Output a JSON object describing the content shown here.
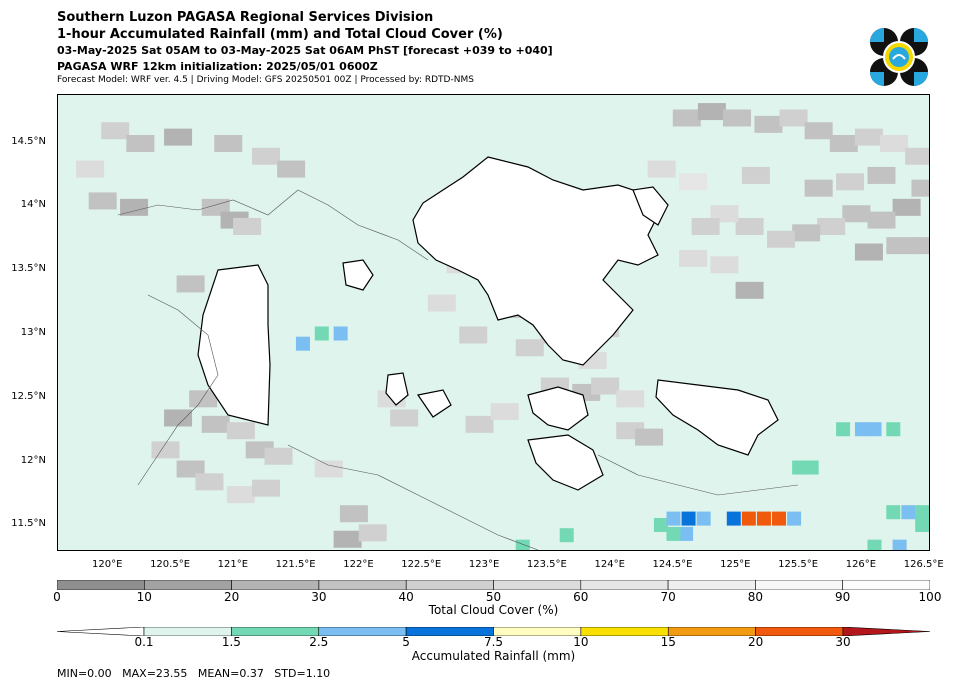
{
  "header": {
    "line1": "Southern Luzon PAGASA Regional Services Division",
    "line2": "1-hour Accumulated Rainfall (mm) and Total Cloud Cover (%)",
    "line3": "03-May-2025 Sat 05AM to 03-May-2025 Sat 06AM PhST [forecast +039 to +040]",
    "line4": "PAGASA WRF 12km initialization: 2025/05/01 0600Z",
    "line5": "Forecast Model: WRF ver. 4.5 | Driving Model: GFS 20250501 00Z | Processed by: RDTD-NMS"
  },
  "logo": {
    "icon": "pagasa-seal-icon",
    "colors": [
      "#111111",
      "#29a8e0",
      "#f5d800"
    ]
  },
  "chart_data": {
    "type": "heatmap",
    "map": {
      "lon_range": [
        119.6,
        126.55
      ],
      "lat_range": [
        11.3,
        14.88
      ],
      "x_ticks": [
        "120°E",
        "120.5°E",
        "121°E",
        "121.5°E",
        "122°E",
        "122.5°E",
        "123°E",
        "123.5°E",
        "124°E",
        "124.5°E",
        "125°E",
        "125.5°E",
        "126°E",
        "126.5°E"
      ],
      "x_tick_values": [
        120,
        120.5,
        121,
        121.5,
        122,
        122.5,
        123,
        123.5,
        124,
        124.5,
        125,
        125.5,
        126,
        126.5
      ],
      "y_ticks": [
        "14.5°N",
        "14°N",
        "13.5°N",
        "13°N",
        "12.5°N",
        "12°N",
        "11.5°N"
      ],
      "y_tick_values": [
        14.5,
        14,
        13.5,
        13,
        12.5,
        12,
        11.5
      ],
      "background_rainfall_color": "#dff4ec"
    },
    "cloud_cover_scale": {
      "label": "Total Cloud Cover (%)",
      "ticks": [
        "0",
        "10",
        "20",
        "30",
        "40",
        "50",
        "60",
        "70",
        "80",
        "90",
        "100"
      ],
      "colors": [
        "#8f8f8f",
        "#a2a2a2",
        "#b3b3b3",
        "#c2c2c2",
        "#d0d0d0",
        "#dcdcdc",
        "#e6e6e6",
        "#efefef",
        "#f7f7f7",
        "#fcfcfc"
      ]
    },
    "rainfall_scale": {
      "label": "Accumulated Rainfall (mm)",
      "ticks": [
        "0.1",
        "1.5",
        "2.5",
        "5",
        "7.5",
        "10",
        "15",
        "20",
        "30"
      ],
      "colors": [
        "#dff4ec",
        "#72d9b4",
        "#7abef2",
        "#0873da",
        "#fffdc0",
        "#f9e000",
        "#f29a12",
        "#f15a0c",
        "#b4171b"
      ]
    },
    "cloud_cells": [
      {
        "lon": 120.0,
        "lat": 14.6,
        "cc": 40
      },
      {
        "lon": 120.2,
        "lat": 14.5,
        "cc": 30
      },
      {
        "lon": 120.5,
        "lat": 14.55,
        "cc": 20
      },
      {
        "lon": 120.9,
        "lat": 14.5,
        "cc": 30
      },
      {
        "lon": 121.2,
        "lat": 14.4,
        "cc": 40
      },
      {
        "lon": 121.4,
        "lat": 14.3,
        "cc": 30
      },
      {
        "lon": 119.8,
        "lat": 14.3,
        "cc": 50
      },
      {
        "lon": 120.15,
        "lat": 14.0,
        "cc": 20
      },
      {
        "lon": 119.9,
        "lat": 14.05,
        "cc": 30
      },
      {
        "lon": 120.8,
        "lat": 14.0,
        "cc": 30
      },
      {
        "lon": 120.95,
        "lat": 13.9,
        "cc": 20
      },
      {
        "lon": 121.05,
        "lat": 13.85,
        "cc": 40
      },
      {
        "lon": 120.6,
        "lat": 13.4,
        "cc": 30
      },
      {
        "lon": 120.95,
        "lat": 13.4,
        "cc": 20
      },
      {
        "lon": 120.85,
        "lat": 13.2,
        "cc": 30
      },
      {
        "lon": 120.8,
        "lat": 12.9,
        "cc": 30
      },
      {
        "lon": 120.9,
        "lat": 12.75,
        "cc": 40
      },
      {
        "lon": 121.0,
        "lat": 12.6,
        "cc": 30
      },
      {
        "lon": 120.7,
        "lat": 12.5,
        "cc": 30
      },
      {
        "lon": 120.5,
        "lat": 12.35,
        "cc": 20
      },
      {
        "lon": 120.8,
        "lat": 12.3,
        "cc": 30
      },
      {
        "lon": 121.0,
        "lat": 12.25,
        "cc": 40
      },
      {
        "lon": 121.15,
        "lat": 12.1,
        "cc": 30
      },
      {
        "lon": 121.3,
        "lat": 12.05,
        "cc": 40
      },
      {
        "lon": 120.4,
        "lat": 12.1,
        "cc": 40
      },
      {
        "lon": 120.6,
        "lat": 11.95,
        "cc": 30
      },
      {
        "lon": 120.75,
        "lat": 11.85,
        "cc": 40
      },
      {
        "lon": 121.0,
        "lat": 11.75,
        "cc": 50
      },
      {
        "lon": 121.2,
        "lat": 11.8,
        "cc": 40
      },
      {
        "lon": 121.9,
        "lat": 11.6,
        "cc": 30
      },
      {
        "lon": 121.85,
        "lat": 11.4,
        "cc": 20
      },
      {
        "lon": 122.05,
        "lat": 11.45,
        "cc": 40
      },
      {
        "lon": 121.7,
        "lat": 11.95,
        "cc": 50
      },
      {
        "lon": 122.2,
        "lat": 12.5,
        "cc": 50
      },
      {
        "lon": 122.3,
        "lat": 12.35,
        "cc": 40
      },
      {
        "lon": 122.9,
        "lat": 12.3,
        "cc": 40
      },
      {
        "lon": 123.1,
        "lat": 12.4,
        "cc": 50
      },
      {
        "lon": 123.5,
        "lat": 12.6,
        "cc": 40
      },
      {
        "lon": 123.75,
        "lat": 12.55,
        "cc": 30
      },
      {
        "lon": 123.9,
        "lat": 12.6,
        "cc": 40
      },
      {
        "lon": 124.1,
        "lat": 12.5,
        "cc": 50
      },
      {
        "lon": 124.1,
        "lat": 12.25,
        "cc": 40
      },
      {
        "lon": 124.25,
        "lat": 12.2,
        "cc": 30
      },
      {
        "lon": 123.3,
        "lat": 12.9,
        "cc": 40
      },
      {
        "lon": 123.5,
        "lat": 13.0,
        "cc": 40
      },
      {
        "lon": 123.8,
        "lat": 12.8,
        "cc": 50
      },
      {
        "lon": 123.9,
        "lat": 13.05,
        "cc": 40
      },
      {
        "lon": 123.2,
        "lat": 13.2,
        "cc": 30
      },
      {
        "lon": 123.3,
        "lat": 13.65,
        "cc": 40
      },
      {
        "lon": 123.5,
        "lat": 13.75,
        "cc": 40
      },
      {
        "lon": 123.7,
        "lat": 13.9,
        "cc": 50
      },
      {
        "lon": 122.75,
        "lat": 13.55,
        "cc": 50
      },
      {
        "lon": 122.6,
        "lat": 13.25,
        "cc": 50
      },
      {
        "lon": 122.85,
        "lat": 13.0,
        "cc": 40
      },
      {
        "lon": 124.6,
        "lat": 13.6,
        "cc": 50
      },
      {
        "lon": 124.85,
        "lat": 13.55,
        "cc": 50
      },
      {
        "lon": 125.05,
        "lat": 13.35,
        "cc": 20
      },
      {
        "lon": 124.55,
        "lat": 14.7,
        "cc": 30
      },
      {
        "lon": 124.75,
        "lat": 14.75,
        "cc": 20
      },
      {
        "lon": 124.95,
        "lat": 14.7,
        "cc": 30
      },
      {
        "lon": 125.2,
        "lat": 14.65,
        "cc": 30
      },
      {
        "lon": 125.4,
        "lat": 14.7,
        "cc": 40
      },
      {
        "lon": 125.6,
        "lat": 14.6,
        "cc": 30
      },
      {
        "lon": 125.8,
        "lat": 14.5,
        "cc": 30
      },
      {
        "lon": 126.0,
        "lat": 14.55,
        "cc": 40
      },
      {
        "lon": 126.2,
        "lat": 14.5,
        "cc": 50
      },
      {
        "lon": 126.4,
        "lat": 14.4,
        "cc": 40
      },
      {
        "lon": 126.45,
        "lat": 14.15,
        "cc": 30
      },
      {
        "lon": 126.3,
        "lat": 14.0,
        "cc": 20
      },
      {
        "lon": 126.1,
        "lat": 13.9,
        "cc": 30
      },
      {
        "lon": 125.9,
        "lat": 13.95,
        "cc": 30
      },
      {
        "lon": 125.7,
        "lat": 13.85,
        "cc": 40
      },
      {
        "lon": 125.5,
        "lat": 13.8,
        "cc": 30
      },
      {
        "lon": 125.3,
        "lat": 13.75,
        "cc": 40
      },
      {
        "lon": 125.05,
        "lat": 13.85,
        "cc": 40
      },
      {
        "lon": 124.85,
        "lat": 13.95,
        "cc": 50
      },
      {
        "lon": 124.7,
        "lat": 13.85,
        "cc": 40
      },
      {
        "lon": 126.0,
        "lat": 13.65,
        "cc": 20
      },
      {
        "lon": 126.25,
        "lat": 13.7,
        "cc": 30
      },
      {
        "lon": 126.45,
        "lat": 13.7,
        "cc": 30
      },
      {
        "lon": 125.6,
        "lat": 14.15,
        "cc": 30
      },
      {
        "lon": 125.85,
        "lat": 14.2,
        "cc": 40
      },
      {
        "lon": 126.1,
        "lat": 14.25,
        "cc": 30
      },
      {
        "lon": 125.1,
        "lat": 14.25,
        "cc": 40
      },
      {
        "lon": 124.35,
        "lat": 14.3,
        "cc": 50
      },
      {
        "lon": 124.6,
        "lat": 14.2,
        "cc": 60
      }
    ],
    "rain_cells": [
      {
        "lon": 121.7,
        "lat": 13.0,
        "mm": 1.5
      },
      {
        "lon": 121.55,
        "lat": 12.92,
        "mm": 2.5
      },
      {
        "lon": 121.85,
        "lat": 13.0,
        "mm": 2.5
      },
      {
        "lon": 125.85,
        "lat": 12.25,
        "mm": 1.5
      },
      {
        "lon": 126.0,
        "lat": 12.25,
        "mm": 2.5
      },
      {
        "lon": 126.1,
        "lat": 12.25,
        "mm": 2.5
      },
      {
        "lon": 126.25,
        "lat": 12.25,
        "mm": 1.5
      },
      {
        "lon": 125.5,
        "lat": 11.95,
        "mm": 1.5
      },
      {
        "lon": 125.6,
        "lat": 11.95,
        "mm": 1.5
      },
      {
        "lon": 124.4,
        "lat": 11.5,
        "mm": 1.5
      },
      {
        "lon": 124.5,
        "lat": 11.55,
        "mm": 2.5
      },
      {
        "lon": 124.62,
        "lat": 11.55,
        "mm": 5
      },
      {
        "lon": 124.74,
        "lat": 11.55,
        "mm": 2.5
      },
      {
        "lon": 124.6,
        "lat": 11.43,
        "mm": 2.5
      },
      {
        "lon": 124.5,
        "lat": 11.43,
        "mm": 1.5
      },
      {
        "lon": 124.98,
        "lat": 11.55,
        "mm": 5
      },
      {
        "lon": 125.1,
        "lat": 11.55,
        "mm": 20
      },
      {
        "lon": 125.22,
        "lat": 11.55,
        "mm": 20
      },
      {
        "lon": 125.34,
        "lat": 11.55,
        "mm": 20
      },
      {
        "lon": 125.46,
        "lat": 11.55,
        "mm": 2.5
      },
      {
        "lon": 126.25,
        "lat": 11.6,
        "mm": 1.5
      },
      {
        "lon": 126.37,
        "lat": 11.6,
        "mm": 2.5
      },
      {
        "lon": 126.48,
        "lat": 11.6,
        "mm": 1.5
      },
      {
        "lon": 126.48,
        "lat": 11.5,
        "mm": 1.5
      },
      {
        "lon": 126.1,
        "lat": 11.33,
        "mm": 1.5
      },
      {
        "lon": 126.3,
        "lat": 11.33,
        "mm": 2.5
      },
      {
        "lon": 123.3,
        "lat": 11.33,
        "mm": 1.5
      },
      {
        "lon": 123.65,
        "lat": 11.42,
        "mm": 1.5
      }
    ]
  },
  "stats": "MIN=0.00   MAX=23.55   MEAN=0.37   STD=1.10"
}
